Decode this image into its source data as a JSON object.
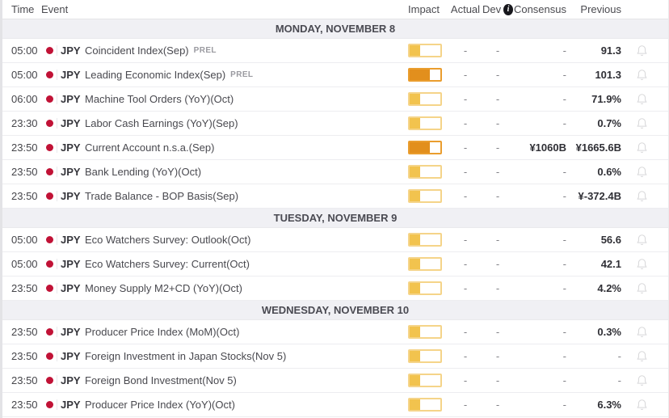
{
  "header": {
    "time": "Time",
    "event": "Event",
    "impact": "Impact",
    "actual": "Actual",
    "dev": "Dev",
    "info_icon_glyph": "i",
    "consensus": "Consensus",
    "previous": "Previous"
  },
  "colors": {
    "currency_dot_red": "#c11236",
    "section_bg": "#f0f0f4",
    "bell_gray": "#d8d8da",
    "value_text": "#2f2f35"
  },
  "impact_levels": {
    "medium": {
      "fill": "#f2c34e",
      "border": "#f5d489",
      "fill_pct": 34
    },
    "high": {
      "fill": "#e28f1d",
      "border": "#ea9d2e",
      "fill_pct": 66
    }
  },
  "sections": [
    {
      "title": "MONDAY, NOVEMBER 8",
      "rows": [
        {
          "time": "05:00",
          "currency": "JPY",
          "event": "Coincident Index(Sep)",
          "tag": "PREL",
          "impact": "medium",
          "actual": "-",
          "dev": "-",
          "consensus": "-",
          "previous": "91.3"
        },
        {
          "time": "05:00",
          "currency": "JPY",
          "event": "Leading Economic Index(Sep)",
          "tag": "PREL",
          "impact": "high",
          "actual": "-",
          "dev": "-",
          "consensus": "-",
          "previous": "101.3"
        },
        {
          "time": "06:00",
          "currency": "JPY",
          "event": "Machine Tool Orders (YoY)(Oct)",
          "impact": "medium",
          "actual": "-",
          "dev": "-",
          "consensus": "-",
          "previous": "71.9%"
        },
        {
          "time": "23:30",
          "currency": "JPY",
          "event": "Labor Cash Earnings (YoY)(Sep)",
          "impact": "medium",
          "actual": "-",
          "dev": "-",
          "consensus": "-",
          "previous": "0.7%"
        },
        {
          "time": "23:50",
          "currency": "JPY",
          "event": "Current Account n.s.a.(Sep)",
          "impact": "high",
          "actual": "-",
          "dev": "-",
          "consensus": "¥1060B",
          "previous": "¥1665.6B"
        },
        {
          "time": "23:50",
          "currency": "JPY",
          "event": "Bank Lending (YoY)(Oct)",
          "impact": "medium",
          "actual": "-",
          "dev": "-",
          "consensus": "-",
          "previous": "0.6%"
        },
        {
          "time": "23:50",
          "currency": "JPY",
          "event": "Trade Balance - BOP Basis(Sep)",
          "impact": "medium",
          "actual": "-",
          "dev": "-",
          "consensus": "-",
          "previous": "¥-372.4B"
        }
      ]
    },
    {
      "title": "TUESDAY, NOVEMBER 9",
      "rows": [
        {
          "time": "05:00",
          "currency": "JPY",
          "event": "Eco Watchers Survey: Outlook(Oct)",
          "impact": "medium",
          "actual": "-",
          "dev": "-",
          "consensus": "-",
          "previous": "56.6"
        },
        {
          "time": "05:00",
          "currency": "JPY",
          "event": "Eco Watchers Survey: Current(Oct)",
          "impact": "medium",
          "actual": "-",
          "dev": "-",
          "consensus": "-",
          "previous": "42.1"
        },
        {
          "time": "23:50",
          "currency": "JPY",
          "event": "Money Supply M2+CD (YoY)(Oct)",
          "impact": "medium",
          "actual": "-",
          "dev": "-",
          "consensus": "-",
          "previous": "4.2%"
        }
      ]
    },
    {
      "title": "WEDNESDAY, NOVEMBER 10",
      "rows": [
        {
          "time": "23:50",
          "currency": "JPY",
          "event": "Producer Price Index (MoM)(Oct)",
          "impact": "medium",
          "actual": "-",
          "dev": "-",
          "consensus": "-",
          "previous": "0.3%"
        },
        {
          "time": "23:50",
          "currency": "JPY",
          "event": "Foreign Investment in Japan Stocks(Nov 5)",
          "impact": "medium",
          "actual": "-",
          "dev": "-",
          "consensus": "-",
          "previous": "-"
        },
        {
          "time": "23:50",
          "currency": "JPY",
          "event": "Foreign Bond Investment(Nov 5)",
          "impact": "medium",
          "actual": "-",
          "dev": "-",
          "consensus": "-",
          "previous": "-"
        },
        {
          "time": "23:50",
          "currency": "JPY",
          "event": "Producer Price Index (YoY)(Oct)",
          "impact": "medium",
          "actual": "-",
          "dev": "-",
          "consensus": "-",
          "previous": "6.3%"
        }
      ]
    }
  ]
}
